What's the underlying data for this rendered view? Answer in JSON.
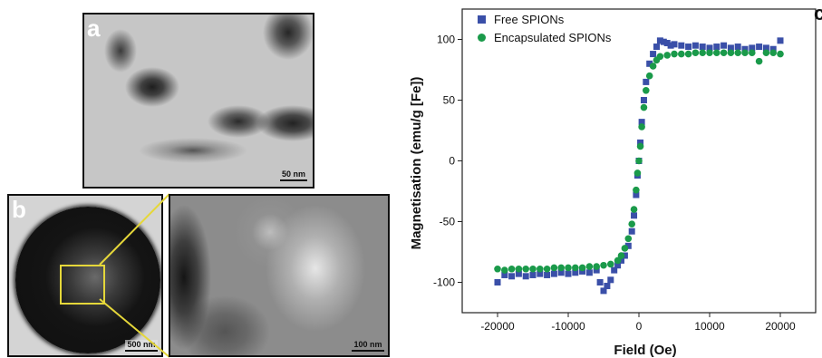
{
  "panels": {
    "a": {
      "label": "a",
      "scale": "50 nm"
    },
    "b": {
      "label": "b",
      "scale_left": "500 nm",
      "scale_right": "100 nm"
    },
    "c": {
      "label": "c"
    }
  },
  "chart_data": {
    "type": "scatter",
    "xlabel": "Field (Oe)",
    "ylabel": "Magnetisation (emu/g [Fe])",
    "xlim": [
      -25000,
      25000
    ],
    "ylim": [
      -125,
      125
    ],
    "xticks": [
      -20000,
      -10000,
      0,
      10000,
      20000
    ],
    "yticks": [
      -100,
      -50,
      0,
      50,
      100
    ],
    "legend_position": "top-left",
    "series": [
      {
        "name": "Free SPIONs",
        "marker": "square",
        "color": "#3a4fa8",
        "x": [
          -20000,
          -19000,
          -18000,
          -17000,
          -16000,
          -15000,
          -14000,
          -13000,
          -12000,
          -11000,
          -10000,
          -9000,
          -8000,
          -7000,
          -6000,
          -5500,
          -5000,
          -4500,
          -4000,
          -3500,
          -3000,
          -2500,
          -2000,
          -1500,
          -1000,
          -700,
          -400,
          -200,
          0,
          200,
          400,
          700,
          1000,
          1500,
          2000,
          2500,
          3000,
          3500,
          4000,
          4500,
          5000,
          6000,
          7000,
          8000,
          9000,
          10000,
          11000,
          12000,
          13000,
          14000,
          15000,
          16000,
          17000,
          18000,
          19000,
          20000
        ],
        "y": [
          -100,
          -94,
          -95,
          -93,
          -95,
          -94,
          -93,
          -94,
          -93,
          -92,
          -93,
          -92,
          -91,
          -92,
          -90,
          -100,
          -107,
          -103,
          -98,
          -90,
          -86,
          -82,
          -78,
          -70,
          -58,
          -45,
          -28,
          -12,
          0,
          15,
          32,
          50,
          65,
          80,
          88,
          94,
          99,
          98,
          97,
          95,
          96,
          95,
          94,
          95,
          94,
          93,
          94,
          95,
          93,
          94,
          92,
          93,
          94,
          93,
          92,
          99
        ]
      },
      {
        "name": "Encapsulated SPIONs",
        "marker": "circle",
        "color": "#1a9a4a",
        "x": [
          -20000,
          -19000,
          -18000,
          -17000,
          -16000,
          -15000,
          -14000,
          -13000,
          -12000,
          -11000,
          -10000,
          -9000,
          -8000,
          -7000,
          -6000,
          -5000,
          -4000,
          -3000,
          -2500,
          -2000,
          -1500,
          -1000,
          -700,
          -400,
          -200,
          0,
          200,
          400,
          700,
          1000,
          1500,
          2000,
          2500,
          3000,
          4000,
          5000,
          6000,
          7000,
          8000,
          9000,
          10000,
          11000,
          12000,
          13000,
          14000,
          15000,
          16000,
          17000,
          18000,
          19000,
          20000
        ],
        "y": [
          -89,
          -90,
          -89,
          -89,
          -89,
          -89,
          -89,
          -89,
          -88,
          -88,
          -88,
          -88,
          -88,
          -87,
          -87,
          -86,
          -85,
          -82,
          -78,
          -72,
          -64,
          -52,
          -40,
          -24,
          -10,
          0,
          12,
          28,
          44,
          58,
          70,
          78,
          83,
          86,
          87,
          88,
          88,
          88,
          89,
          89,
          89,
          89,
          89,
          89,
          89,
          89,
          89,
          82,
          89,
          89,
          88
        ]
      }
    ]
  }
}
